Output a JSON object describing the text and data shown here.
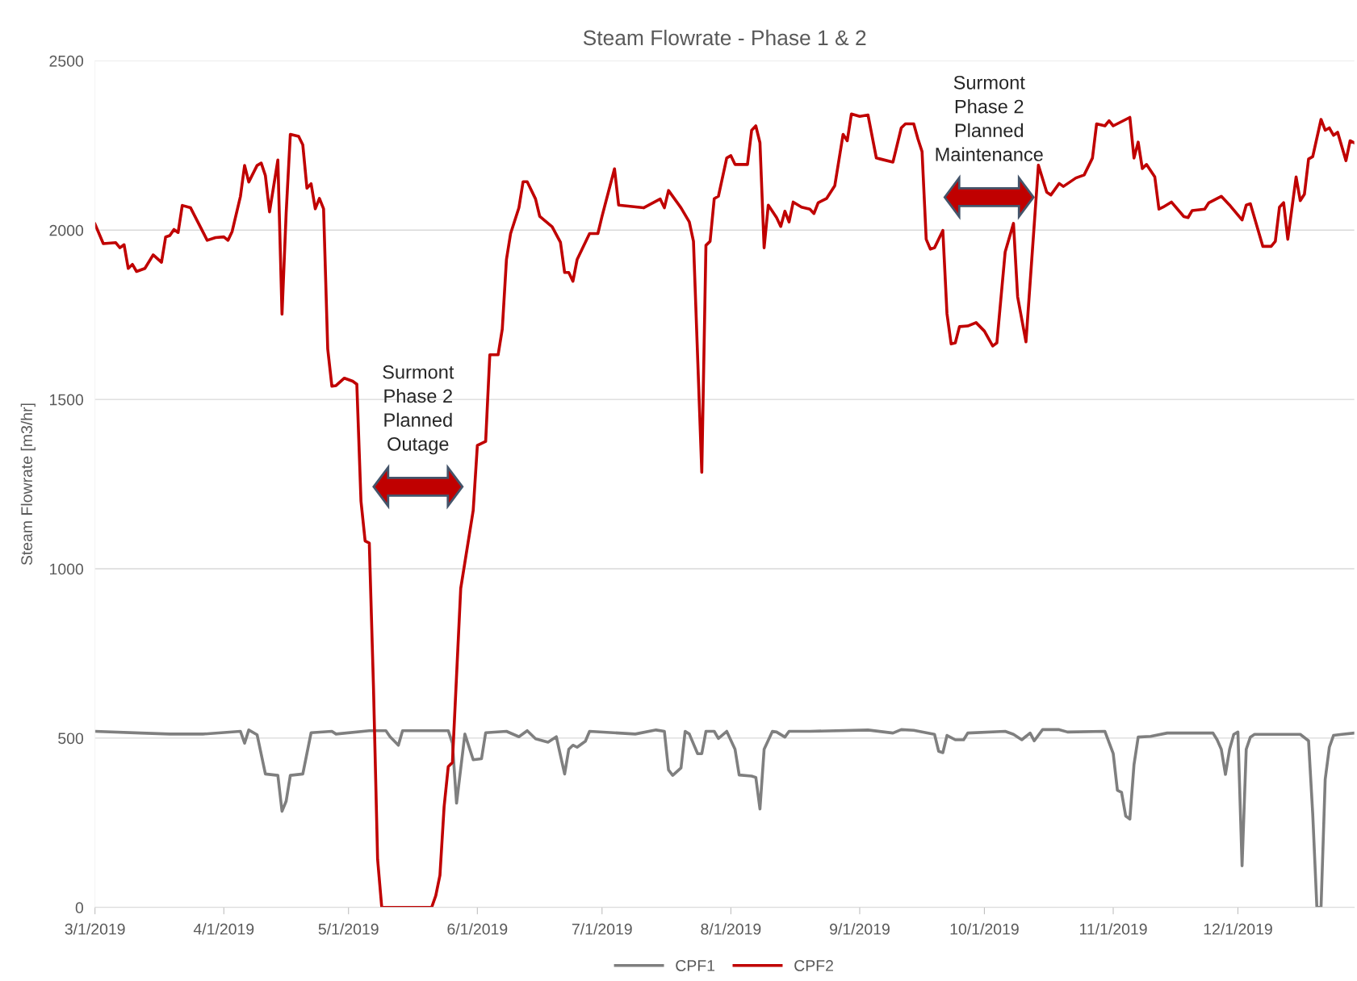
{
  "chart_data": {
    "type": "line",
    "title": "Steam Flowrate - Phase 1 & 2",
    "ylabel": "Steam Flowrate [m3/hr]",
    "xlim": [
      "2019-03-01",
      "2019-12-29"
    ],
    "xticks": [
      {
        "value": "2019-03-01",
        "label": "3/1/2019"
      },
      {
        "value": "2019-04-01",
        "label": "4/1/2019"
      },
      {
        "value": "2019-05-01",
        "label": "5/1/2019"
      },
      {
        "value": "2019-06-01",
        "label": "6/1/2019"
      },
      {
        "value": "2019-07-01",
        "label": "7/1/2019"
      },
      {
        "value": "2019-08-01",
        "label": "8/1/2019"
      },
      {
        "value": "2019-09-01",
        "label": "9/1/2019"
      },
      {
        "value": "2019-10-01",
        "label": "10/1/2019"
      },
      {
        "value": "2019-11-01",
        "label": "11/1/2019"
      },
      {
        "value": "2019-12-01",
        "label": "12/1/2019"
      }
    ],
    "ylim": [
      0,
      2500
    ],
    "yticks": [
      0,
      500,
      1000,
      1500,
      2000,
      2500
    ],
    "grid": "y",
    "legend": "bottom",
    "marker": "none",
    "line_style": "solid",
    "annotations": [
      "Surmont\nPhase 2\nPlanned\nOutage",
      "Surmont\nPhase 2\nPlanned\nMaintenance"
    ],
    "series": [
      {
        "name": "CPF1",
        "color": "#7f7f7f",
        "x": [
          "2019-03-01",
          "2019-03-12",
          "2019-03-19",
          "2019-03-27",
          "2019-04-05",
          "2019-04-06",
          "2019-04-07",
          "2019-04-09",
          "2019-04-11",
          "2019-04-14",
          "2019-04-15",
          "2019-04-16",
          "2019-04-17",
          "2019-04-20",
          "2019-04-22",
          "2019-04-27",
          "2019-04-28",
          "2019-05-06",
          "2019-05-10",
          "2019-05-11",
          "2019-05-13",
          "2019-05-14",
          "2019-05-25",
          "2019-05-26",
          "2019-05-27",
          "2019-05-29",
          "2019-05-31",
          "2019-06-02",
          "2019-06-03",
          "2019-06-08",
          "2019-06-11",
          "2019-06-13",
          "2019-06-15",
          "2019-06-18",
          "2019-06-20",
          "2019-06-22",
          "2019-06-23",
          "2019-06-24",
          "2019-06-25",
          "2019-06-27",
          "2019-06-28",
          "2019-07-09",
          "2019-07-14",
          "2019-07-16",
          "2019-07-17",
          "2019-07-18",
          "2019-07-20",
          "2019-07-21",
          "2019-07-22",
          "2019-07-24",
          "2019-07-25",
          "2019-07-26",
          "2019-07-28",
          "2019-07-29",
          "2019-07-31",
          "2019-08-02",
          "2019-08-03",
          "2019-08-06",
          "2019-08-07",
          "2019-08-08",
          "2019-08-09",
          "2019-08-11",
          "2019-08-12",
          "2019-08-14",
          "2019-08-15",
          "2019-08-20",
          "2019-09-03",
          "2019-09-09",
          "2019-09-11",
          "2019-09-14",
          "2019-09-19",
          "2019-09-20",
          "2019-09-21",
          "2019-09-22",
          "2019-09-24",
          "2019-09-26",
          "2019-09-27",
          "2019-10-06",
          "2019-10-08",
          "2019-10-10",
          "2019-10-12",
          "2019-10-13",
          "2019-10-15",
          "2019-10-19",
          "2019-10-21",
          "2019-10-30",
          "2019-11-01",
          "2019-11-02",
          "2019-11-03",
          "2019-11-04",
          "2019-11-05",
          "2019-11-06",
          "2019-11-07",
          "2019-11-10",
          "2019-11-14",
          "2019-11-25",
          "2019-11-26",
          "2019-11-27",
          "2019-11-28",
          "2019-11-29",
          "2019-11-30",
          "2019-12-01",
          "2019-12-02",
          "2019-12-03",
          "2019-12-04",
          "2019-12-05",
          "2019-12-16",
          "2019-12-18",
          "2019-12-19",
          "2019-12-20",
          "2019-12-21",
          "2019-12-22",
          "2019-12-23",
          "2019-12-24",
          "2019-12-26",
          "2019-12-29"
        ],
        "values": [
          520,
          515,
          512,
          512,
          520,
          485,
          524,
          510,
          394,
          390,
          284,
          314,
          390,
          394,
          516,
          520,
          512,
          522,
          522,
          504,
          479,
          522,
          522,
          485,
          308,
          512,
          436,
          439,
          516,
          520,
          504,
          522,
          498,
          488,
          504,
          394,
          467,
          479,
          473,
          491,
          520,
          512,
          524,
          520,
          406,
          390,
          412,
          520,
          512,
          454,
          454,
          520,
          520,
          499,
          520,
          467,
          391,
          388,
          384,
          291,
          467,
          520,
          518,
          503,
          520,
          520,
          524,
          515,
          525,
          523,
          511,
          461,
          457,
          508,
          495,
          495,
          515,
          520,
          511,
          495,
          515,
          492,
          525,
          525,
          518,
          520,
          454,
          346,
          340,
          270,
          261,
          422,
          503,
          505,
          515,
          515,
          495,
          467,
          393,
          467,
          511,
          518,
          123,
          467,
          503,
          511,
          511,
          492,
          276,
          0,
          0,
          378,
          473,
          508,
          511,
          515
        ]
      },
      {
        "name": "CPF2",
        "color": "#c00000",
        "x": [
          "2019-03-01",
          "2019-03-03",
          "2019-03-06",
          "2019-03-07",
          "2019-03-08",
          "2019-03-09",
          "2019-03-10",
          "2019-03-11",
          "2019-03-13",
          "2019-03-15",
          "2019-03-17",
          "2019-03-18",
          "2019-03-19",
          "2019-03-20",
          "2019-03-21",
          "2019-03-22",
          "2019-03-24",
          "2019-03-28",
          "2019-03-30",
          "2019-04-01",
          "2019-04-02",
          "2019-04-03",
          "2019-04-05",
          "2019-04-06",
          "2019-04-07",
          "2019-04-09",
          "2019-04-10",
          "2019-04-11",
          "2019-04-12",
          "2019-04-14",
          "2019-04-15",
          "2019-04-16",
          "2019-04-17",
          "2019-04-19",
          "2019-04-20",
          "2019-04-21",
          "2019-04-22",
          "2019-04-23",
          "2019-04-24",
          "2019-04-25",
          "2019-04-26",
          "2019-04-27",
          "2019-04-28",
          "2019-04-30",
          "2019-05-02",
          "2019-05-03",
          "2019-05-04",
          "2019-05-05",
          "2019-05-06",
          "2019-05-07",
          "2019-05-08",
          "2019-05-09",
          "2019-05-21",
          "2019-05-22",
          "2019-05-23",
          "2019-05-24",
          "2019-05-25",
          "2019-05-26",
          "2019-05-28",
          "2019-05-31",
          "2019-06-01",
          "2019-06-03",
          "2019-06-04",
          "2019-06-06",
          "2019-06-07",
          "2019-06-08",
          "2019-06-09",
          "2019-06-11",
          "2019-06-12",
          "2019-06-13",
          "2019-06-15",
          "2019-06-16",
          "2019-06-19",
          "2019-06-21",
          "2019-06-22",
          "2019-06-23",
          "2019-06-24",
          "2019-06-25",
          "2019-06-28",
          "2019-06-30",
          "2019-07-01",
          "2019-07-04",
          "2019-07-05",
          "2019-07-11",
          "2019-07-15",
          "2019-07-16",
          "2019-07-17",
          "2019-07-20",
          "2019-07-22",
          "2019-07-23",
          "2019-07-25",
          "2019-07-26",
          "2019-07-27",
          "2019-07-28",
          "2019-07-29",
          "2019-07-31",
          "2019-08-01",
          "2019-08-02",
          "2019-08-05",
          "2019-08-06",
          "2019-08-07",
          "2019-08-08",
          "2019-08-09",
          "2019-08-10",
          "2019-08-12",
          "2019-08-13",
          "2019-08-14",
          "2019-08-15",
          "2019-08-16",
          "2019-08-18",
          "2019-08-20",
          "2019-08-21",
          "2019-08-22",
          "2019-08-24",
          "2019-08-26",
          "2019-08-28",
          "2019-08-29",
          "2019-08-30",
          "2019-09-01",
          "2019-09-03",
          "2019-09-05",
          "2019-09-06",
          "2019-09-09",
          "2019-09-11",
          "2019-09-12",
          "2019-09-14",
          "2019-09-15",
          "2019-09-16",
          "2019-09-17",
          "2019-09-18",
          "2019-09-19",
          "2019-09-21",
          "2019-09-22",
          "2019-09-23",
          "2019-09-24",
          "2019-09-25",
          "2019-09-27",
          "2019-09-29",
          "2019-10-01",
          "2019-10-03",
          "2019-10-04",
          "2019-10-06",
          "2019-10-08",
          "2019-10-09",
          "2019-10-11",
          "2019-10-14",
          "2019-10-16",
          "2019-10-17",
          "2019-10-19",
          "2019-10-20",
          "2019-10-23",
          "2019-10-25",
          "2019-10-27",
          "2019-10-28",
          "2019-10-30",
          "2019-10-31",
          "2019-11-01",
          "2019-11-05",
          "2019-11-06",
          "2019-11-07",
          "2019-11-08",
          "2019-11-09",
          "2019-11-11",
          "2019-11-12",
          "2019-11-13",
          "2019-11-15",
          "2019-11-18",
          "2019-11-19",
          "2019-11-20",
          "2019-11-23",
          "2019-11-24",
          "2019-11-27",
          "2019-11-29",
          "2019-12-02",
          "2019-12-03",
          "2019-12-04",
          "2019-12-07",
          "2019-12-09",
          "2019-12-10",
          "2019-12-11",
          "2019-12-12",
          "2019-12-13",
          "2019-12-15",
          "2019-12-16",
          "2019-12-17",
          "2019-12-18",
          "2019-12-19",
          "2019-12-21",
          "2019-12-22",
          "2019-12-23",
          "2019-12-24",
          "2019-12-25",
          "2019-12-27",
          "2019-12-28",
          "2019-12-29"
        ],
        "values": [
          2018,
          1960,
          1963,
          1948,
          1957,
          1887,
          1899,
          1878,
          1887,
          1927,
          1905,
          1980,
          1984,
          2002,
          1993,
          2073,
          2066,
          1970,
          1978,
          1980,
          1970,
          1996,
          2100,
          2191,
          2142,
          2191,
          2198,
          2161,
          2054,
          2207,
          1752,
          2051,
          2283,
          2277,
          2252,
          2124,
          2137,
          2063,
          2094,
          2063,
          1649,
          1539,
          1541,
          1563,
          1554,
          1545,
          1200,
          1082,
          1076,
          654,
          142,
          0,
          0,
          35,
          95,
          297,
          416,
          428,
          942,
          1172,
          1364,
          1376,
          1632,
          1632,
          1708,
          1913,
          1990,
          2066,
          2143,
          2143,
          2092,
          2041,
          2010,
          1964,
          1875,
          1875,
          1849,
          1913,
          1990,
          1990,
          2041,
          2181,
          2074,
          2066,
          2092,
          2066,
          2117,
          2066,
          2024,
          1967,
          1285,
          1955,
          1967,
          2093,
          2100,
          2213,
          2220,
          2194,
          2194,
          2295,
          2308,
          2258,
          1948,
          2074,
          2037,
          2011,
          2056,
          2024,
          2083,
          2068,
          2062,
          2049,
          2081,
          2093,
          2131,
          2283,
          2264,
          2343,
          2336,
          2340,
          2213,
          2210,
          2201,
          2302,
          2314,
          2314,
          2270,
          2232,
          1973,
          1944,
          1948,
          1999,
          1753,
          1664,
          1667,
          1715,
          1717,
          1727,
          1702,
          1658,
          1667,
          1936,
          2020,
          1803,
          1670,
          2192,
          2112,
          2104,
          2138,
          2129,
          2154,
          2163,
          2213,
          2314,
          2308,
          2323,
          2308,
          2333,
          2213,
          2260,
          2182,
          2194,
          2157,
          2062,
          2068,
          2083,
          2040,
          2037,
          2058,
          2062,
          2081,
          2100,
          2074,
          2030,
          2074,
          2078,
          1952,
          1952,
          1967,
          2068,
          2081,
          1973,
          2157,
          2087,
          2106,
          2210,
          2217,
          2327,
          2295,
          2302,
          2280,
          2289,
          2205,
          2264,
          2258
        ]
      }
    ]
  }
}
